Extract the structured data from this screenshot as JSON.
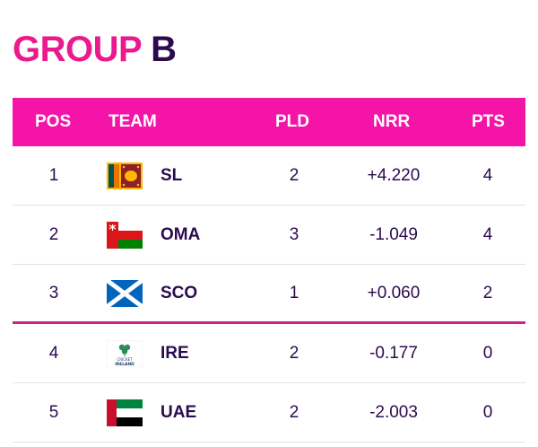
{
  "title": {
    "word1": "GROUP",
    "word2": "B"
  },
  "headers": {
    "pos": "POS",
    "team": "TEAM",
    "pld": "PLD",
    "nrr": "NRR",
    "pts": "PTS"
  },
  "rows": [
    {
      "pos": "1",
      "team": "SL",
      "pld": "2",
      "nrr": "+4.220",
      "pts": "4",
      "flag": "sri-lanka-flag-icon"
    },
    {
      "pos": "2",
      "team": "OMA",
      "pld": "3",
      "nrr": "-1.049",
      "pts": "4",
      "flag": "oman-flag-icon"
    },
    {
      "pos": "3",
      "team": "SCO",
      "pld": "1",
      "nrr": "+0.060",
      "pts": "2",
      "flag": "scotland-flag-icon"
    },
    {
      "pos": "4",
      "team": "IRE",
      "pld": "2",
      "nrr": "-0.177",
      "pts": "0",
      "flag": "cricket-ireland-logo-icon",
      "flag_text": "CRICKET IRELAND"
    },
    {
      "pos": "5",
      "team": "UAE",
      "pld": "2",
      "nrr": "-2.003",
      "pts": "0",
      "flag": "uae-flag-icon"
    }
  ],
  "colors": {
    "header_bg": "#f415a8",
    "title_accent": "#ea1a8e",
    "text_dark": "#2c0a4f",
    "qualify_line": "#d61d8f"
  }
}
